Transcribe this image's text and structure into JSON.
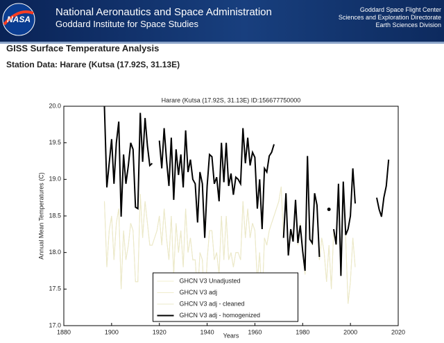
{
  "header": {
    "logo": "NASA",
    "agency": "National Aeronautics and Space Administration",
    "institute": "Goddard Institute for Space Studies",
    "center_lines": [
      "Goddard Space Flight Center",
      "Sciences and Exploration Directorate",
      "Earth Sciences Division"
    ]
  },
  "page": {
    "heading": "GISS Surface Temperature Analysis",
    "subheading": "Station Data: Harare (Kutsa (17.92S, 31.13E)"
  },
  "chart_data": {
    "type": "line",
    "title": "Harare (Kutsa (17.92S, 31.13E) ID:156677750000",
    "x_label": "Years",
    "y_label": "Annual Mean Temperatures (C)",
    "x": [
      1897,
      1898,
      1899,
      1900,
      1901,
      1902,
      1903,
      1904,
      1905,
      1906,
      1907,
      1908,
      1909,
      1910,
      1911,
      1912,
      1913,
      1914,
      1915,
      1916,
      1917,
      1918,
      1919,
      1920,
      1921,
      1922,
      1923,
      1924,
      1925,
      1926,
      1927,
      1928,
      1929,
      1930,
      1931,
      1932,
      1933,
      1934,
      1935,
      1936,
      1937,
      1938,
      1939,
      1940,
      1941,
      1942,
      1943,
      1944,
      1945,
      1946,
      1947,
      1948,
      1949,
      1950,
      1951,
      1952,
      1953,
      1954,
      1955,
      1956,
      1957,
      1958,
      1959,
      1960,
      1961,
      1962,
      1963,
      1964,
      1965,
      1966,
      1967,
      1968,
      1969,
      1970,
      1971,
      1972,
      1973,
      1974,
      1975,
      1976,
      1977,
      1978,
      1979,
      1980,
      1981,
      1982,
      1983,
      1984,
      1985,
      1986,
      1987,
      1988,
      1989,
      1990,
      1991,
      1992,
      1993,
      1994,
      1995,
      1996,
      1997,
      1998,
      1999,
      2000,
      2001,
      2002,
      2003,
      2004,
      2005,
      2006,
      2007,
      2008,
      2009,
      2010,
      2011,
      2012,
      2013,
      2014,
      2015,
      2016
    ],
    "series": [
      {
        "name": "GHCN V3 Unadjusted",
        "color": "#f3f0d0",
        "width": 1,
        "values": [
          18.7,
          17.8,
          18.3,
          18.5,
          17.9,
          18.4,
          18.6,
          17.5,
          18.3,
          17.9,
          18.1,
          18.4,
          18.3,
          17.6,
          17.6,
          18.8,
          18.2,
          18.7,
          18.4,
          18.1,
          18.1,
          18.2,
          18.3,
          18.5,
          18.1,
          18.6,
          18.2,
          17.9,
          18.5,
          17.7,
          18.4,
          18.0,
          18.3,
          17.8,
          18.6,
          18.0,
          18.2,
          17.9,
          17.9,
          17.4,
          18.0,
          17.9,
          17.2,
          17.9,
          18.3,
          18.3,
          17.9,
          18.0,
          17.7,
          18.5,
          17.9,
          18.5,
          17.9,
          18.0,
          17.8,
          18.0,
          18.0,
          17.9,
          18.7,
          18.2,
          18.6,
          18.2,
          18.4,
          18.3,
          17.6,
          18.0,
          17.3,
          18.2,
          18.1,
          18.3,
          18.4,
          18.5,
          18.6,
          18.7,
          18.9,
          18.2,
          18.8,
          18.0,
          18.3,
          18.2,
          18.7,
          18.1,
          18.4,
          18.0,
          17.7,
          19.3,
          18.2,
          18.1,
          18.8,
          18.6,
          17.9,
          18.2,
          18.0,
          17.6,
          18.1,
          17.5,
          18.3,
          18.1,
          18.9,
          17.7,
          18.9,
          18.2,
          17.3,
          17.6,
          18.2,
          17.8,
          null,
          null,
          null,
          null,
          null,
          null,
          null,
          null,
          null,
          null,
          null,
          null,
          null,
          null
        ]
      },
      {
        "name": "GHCN V3 adj",
        "color": "#efeccc",
        "width": 1,
        "values": [
          18.7,
          17.8,
          18.3,
          18.5,
          17.9,
          18.4,
          18.6,
          17.5,
          18.3,
          17.9,
          18.1,
          18.4,
          18.3,
          17.6,
          17.6,
          18.8,
          18.2,
          18.7,
          18.4,
          18.1,
          18.1,
          18.2,
          18.3,
          18.5,
          18.1,
          18.6,
          18.2,
          17.9,
          18.5,
          17.7,
          18.4,
          18.0,
          18.3,
          17.8,
          18.6,
          18.0,
          18.2,
          17.9,
          17.9,
          17.4,
          18.0,
          17.9,
          17.2,
          17.9,
          18.3,
          18.3,
          17.9,
          18.0,
          17.7,
          18.5,
          17.9,
          18.5,
          17.9,
          18.0,
          17.8,
          18.0,
          18.0,
          17.9,
          18.7,
          18.2,
          18.6,
          18.2,
          18.4,
          18.3,
          17.6,
          18.0,
          17.3,
          18.2,
          18.1,
          18.3,
          18.4,
          18.5,
          18.6,
          18.7,
          18.9,
          18.2,
          18.8,
          18.0,
          18.3,
          18.2,
          18.7,
          18.1,
          18.4,
          18.0,
          17.7,
          19.3,
          18.2,
          18.1,
          18.8,
          18.6,
          17.9,
          18.2,
          18.0,
          17.6,
          18.1,
          17.5,
          18.3,
          18.1,
          18.9,
          17.7,
          18.9,
          18.2,
          17.3,
          17.6,
          18.2,
          17.8,
          null,
          null,
          null,
          null,
          null,
          null,
          null,
          null,
          null,
          null,
          null,
          null,
          null,
          null
        ]
      },
      {
        "name": "GHCN V3 adj - cleaned",
        "color": "#ebe8c8",
        "width": 1,
        "values": [
          18.7,
          17.8,
          18.3,
          18.5,
          17.9,
          18.4,
          18.6,
          17.5,
          18.3,
          17.9,
          18.1,
          18.4,
          18.3,
          17.6,
          17.6,
          18.8,
          18.2,
          18.7,
          18.4,
          18.1,
          18.1,
          18.2,
          18.3,
          18.5,
          18.1,
          18.6,
          18.2,
          17.9,
          18.5,
          17.7,
          18.4,
          18.0,
          18.3,
          17.8,
          18.6,
          18.0,
          18.2,
          17.9,
          17.9,
          17.4,
          18.0,
          17.9,
          17.2,
          17.9,
          18.3,
          18.3,
          17.9,
          18.0,
          17.7,
          18.5,
          17.9,
          18.5,
          17.9,
          18.0,
          17.8,
          18.0,
          18.0,
          17.9,
          18.7,
          18.2,
          18.6,
          18.2,
          18.4,
          18.3,
          17.6,
          18.0,
          17.3,
          18.2,
          18.1,
          18.3,
          18.4,
          18.5,
          18.6,
          18.7,
          18.9,
          18.2,
          18.8,
          18.0,
          18.3,
          18.2,
          18.7,
          18.1,
          18.4,
          18.0,
          17.7,
          19.3,
          18.2,
          18.1,
          18.8,
          18.6,
          17.9,
          18.2,
          18.0,
          17.6,
          18.1,
          17.5,
          18.3,
          18.1,
          18.9,
          17.7,
          18.9,
          18.2,
          17.3,
          17.6,
          18.2,
          17.8,
          null,
          null,
          null,
          null,
          null,
          null,
          null,
          null,
          null,
          null,
          null,
          null,
          null,
          null
        ]
      },
      {
        "name": "GHCN V3 adj - homogenized",
        "color": "#000000",
        "width": 2,
        "values": [
          20.0,
          18.89,
          19.22,
          19.55,
          18.94,
          19.5,
          19.79,
          18.49,
          19.34,
          18.94,
          19.19,
          19.5,
          19.41,
          18.62,
          18.6,
          19.91,
          19.24,
          19.84,
          19.46,
          19.19,
          19.22,
          null,
          null,
          19.53,
          19.15,
          19.7,
          19.27,
          18.91,
          19.57,
          18.72,
          19.41,
          19.06,
          19.34,
          18.89,
          19.67,
          19.1,
          19.27,
          19.0,
          18.94,
          18.41,
          19.1,
          18.94,
          18.2,
          18.91,
          19.34,
          19.31,
          18.94,
          19.03,
          18.7,
          19.5,
          18.96,
          19.5,
          18.91,
          19.08,
          18.79,
          19.03,
          19.0,
          18.94,
          19.7,
          19.22,
          19.57,
          19.19,
          19.37,
          19.3,
          18.6,
          19.0,
          18.32,
          19.15,
          19.1,
          19.32,
          19.37,
          19.48,
          null,
          null,
          null,
          18.2,
          18.81,
          17.96,
          18.32,
          18.15,
          18.72,
          18.13,
          18.37,
          18.02,
          17.75,
          19.32,
          18.18,
          18.13,
          18.81,
          18.65,
          17.94,
          null,
          null,
          null,
          18.59,
          null,
          18.32,
          18.11,
          18.94,
          17.68,
          18.97,
          18.24,
          18.32,
          18.5,
          19.15,
          18.67,
          null,
          null,
          null,
          null,
          null,
          null,
          null,
          null,
          18.75,
          18.59,
          18.49,
          18.75,
          18.91,
          19.27
        ]
      }
    ],
    "xlim": [
      1880,
      2020
    ],
    "xticks": [
      1880,
      1900,
      1920,
      1940,
      1960,
      1980,
      2000,
      2020
    ],
    "ylim": [
      17.0,
      20.0
    ],
    "yticks": [
      {
        "value": 17.0,
        "label": "17.0"
      },
      17.5,
      {
        "value": 18.0,
        "label": "18.0"
      },
      18.5,
      {
        "value": 19.0,
        "label": "19.0"
      },
      19.5,
      {
        "value": 20.0,
        "label": "20.0"
      }
    ],
    "legend": "lower center"
  }
}
